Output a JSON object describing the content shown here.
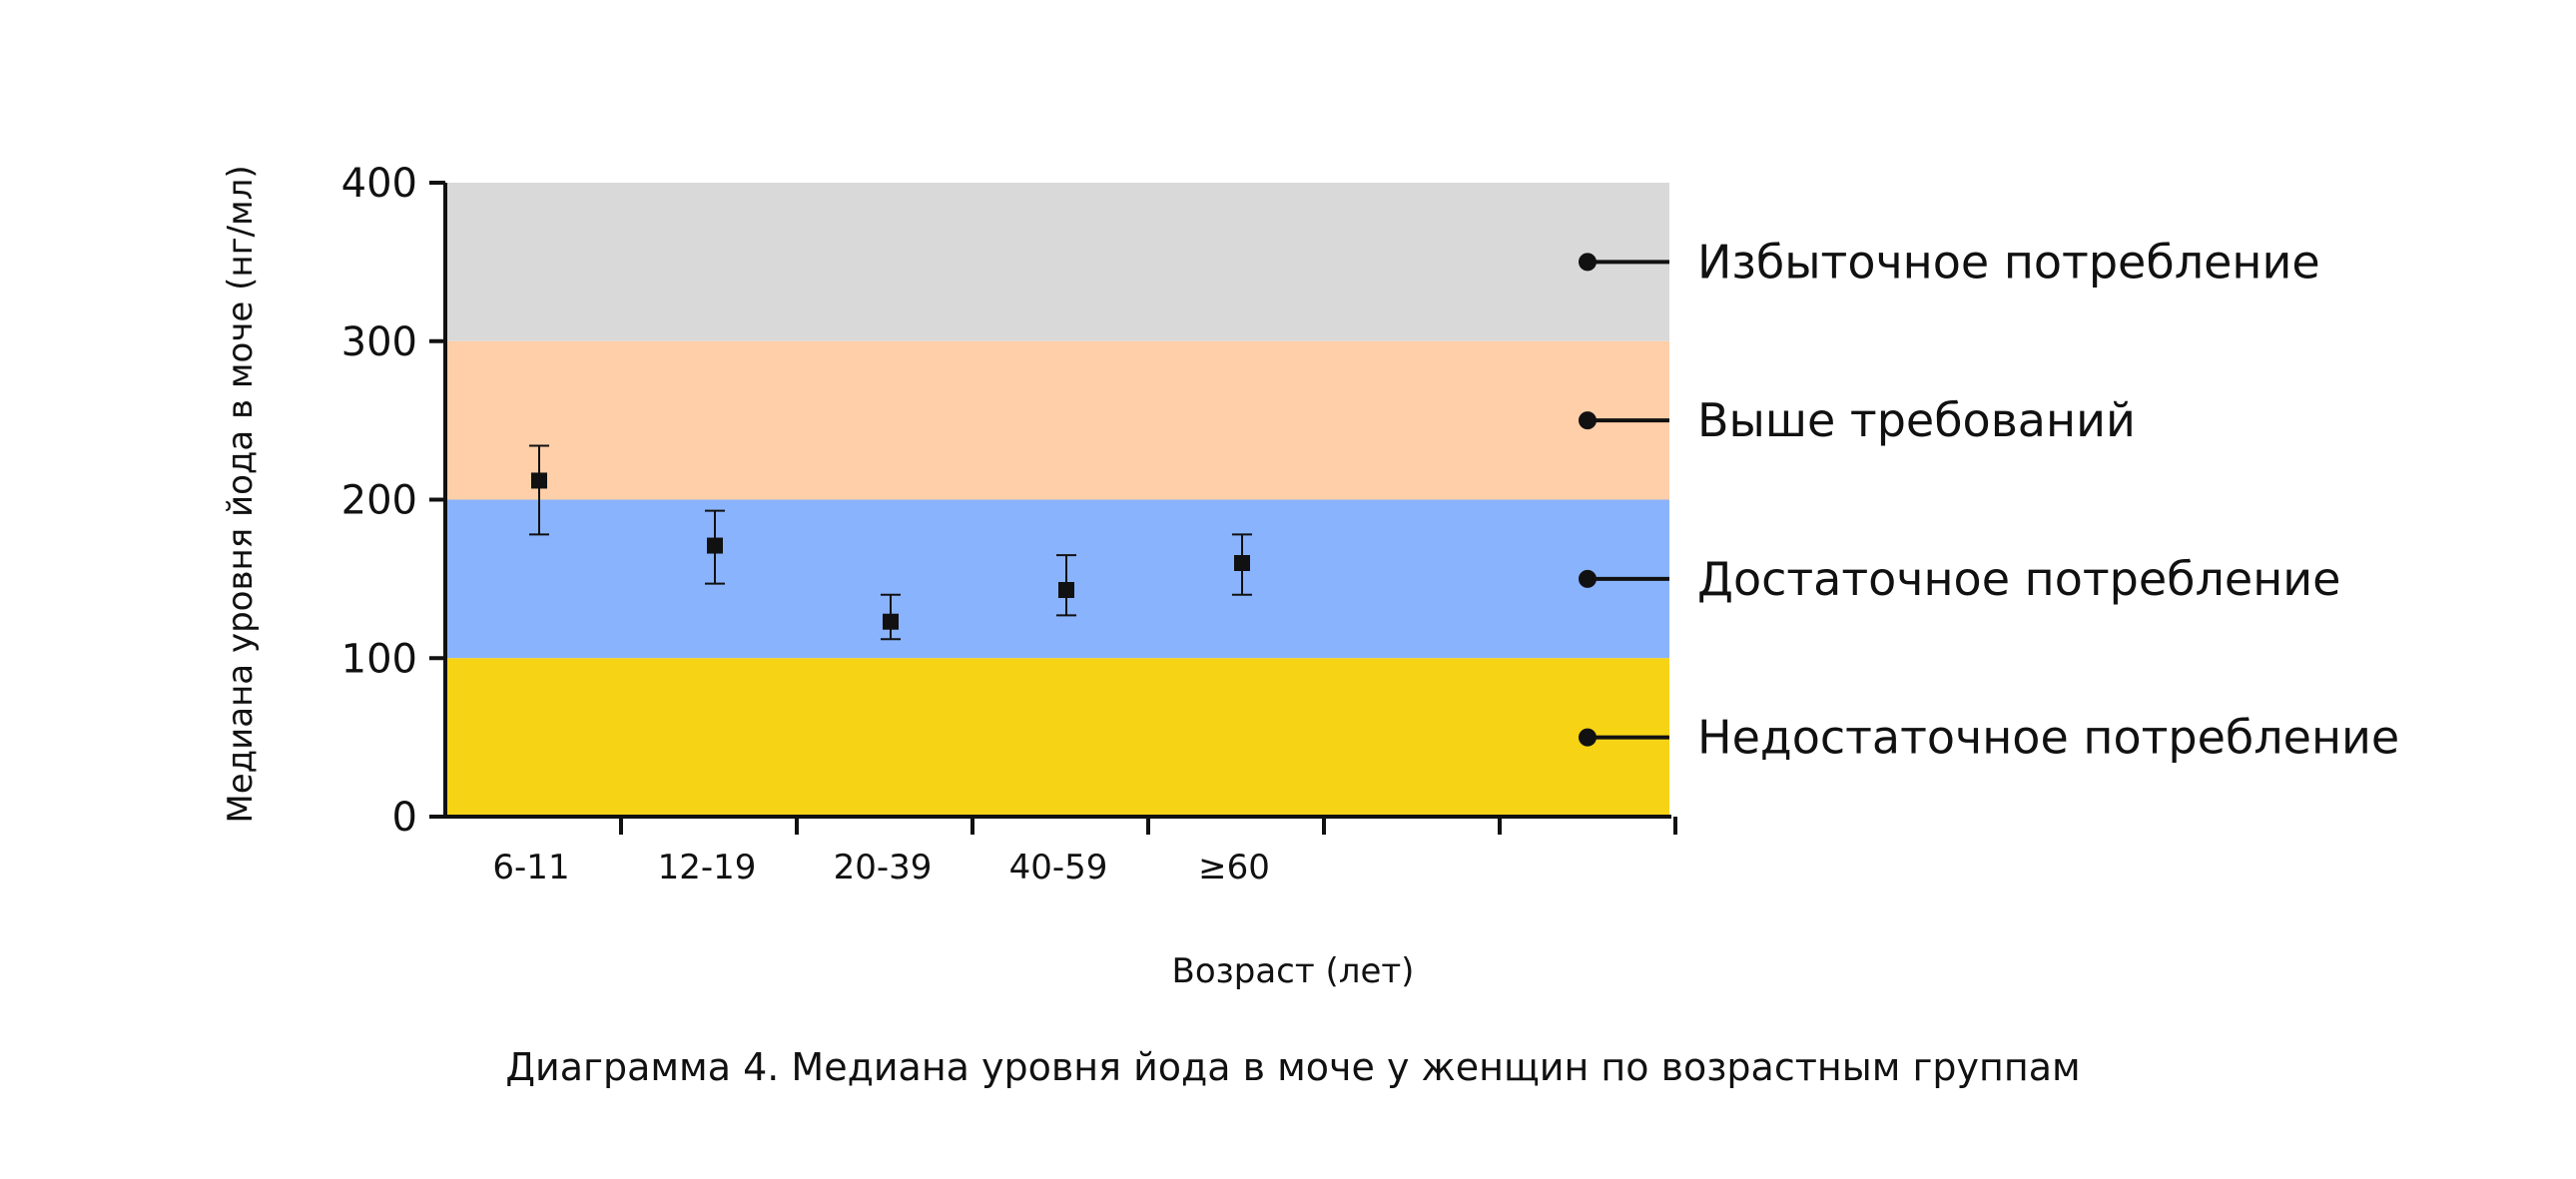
{
  "chart_data": {
    "type": "scatter",
    "title": "",
    "caption": "Диаграмма 4. Медиана уровня йода в моче у женщин по возрастным группам",
    "xlabel": "Возраст (лет)",
    "ylabel": "Медиана уровня йода в моче (нг/мл)",
    "ylim": [
      0,
      400
    ],
    "yticks": [
      0,
      100,
      200,
      300,
      400
    ],
    "grid": false,
    "categories": [
      "6-11",
      "12-19",
      "20-39",
      "40-59",
      "≥60"
    ],
    "points": [
      {
        "category": "6-11",
        "median": 212,
        "low": 178,
        "high": 234
      },
      {
        "category": "12-19",
        "median": 171,
        "low": 147,
        "high": 193
      },
      {
        "category": "20-39",
        "median": 123,
        "low": 112,
        "high": 140
      },
      {
        "category": "40-59",
        "median": 143,
        "low": 127,
        "high": 165
      },
      {
        "category": "≥60",
        "median": 160,
        "low": 140,
        "high": 178
      }
    ],
    "bands": [
      {
        "label": "Избыточное потребление",
        "from": 300,
        "to": 400,
        "marker": 350,
        "color": "#d9d9d9"
      },
      {
        "label": "Выше требований",
        "from": 200,
        "to": 300,
        "marker": 250,
        "color": "#fecfa8"
      },
      {
        "label": "Достаточное потребление",
        "from": 100,
        "to": 200,
        "marker": 150,
        "color": "#8ab3fd"
      },
      {
        "label": "Недостаточное потребление",
        "from": 0,
        "to": 100,
        "marker": 50,
        "color": "#f7d316"
      }
    ]
  }
}
